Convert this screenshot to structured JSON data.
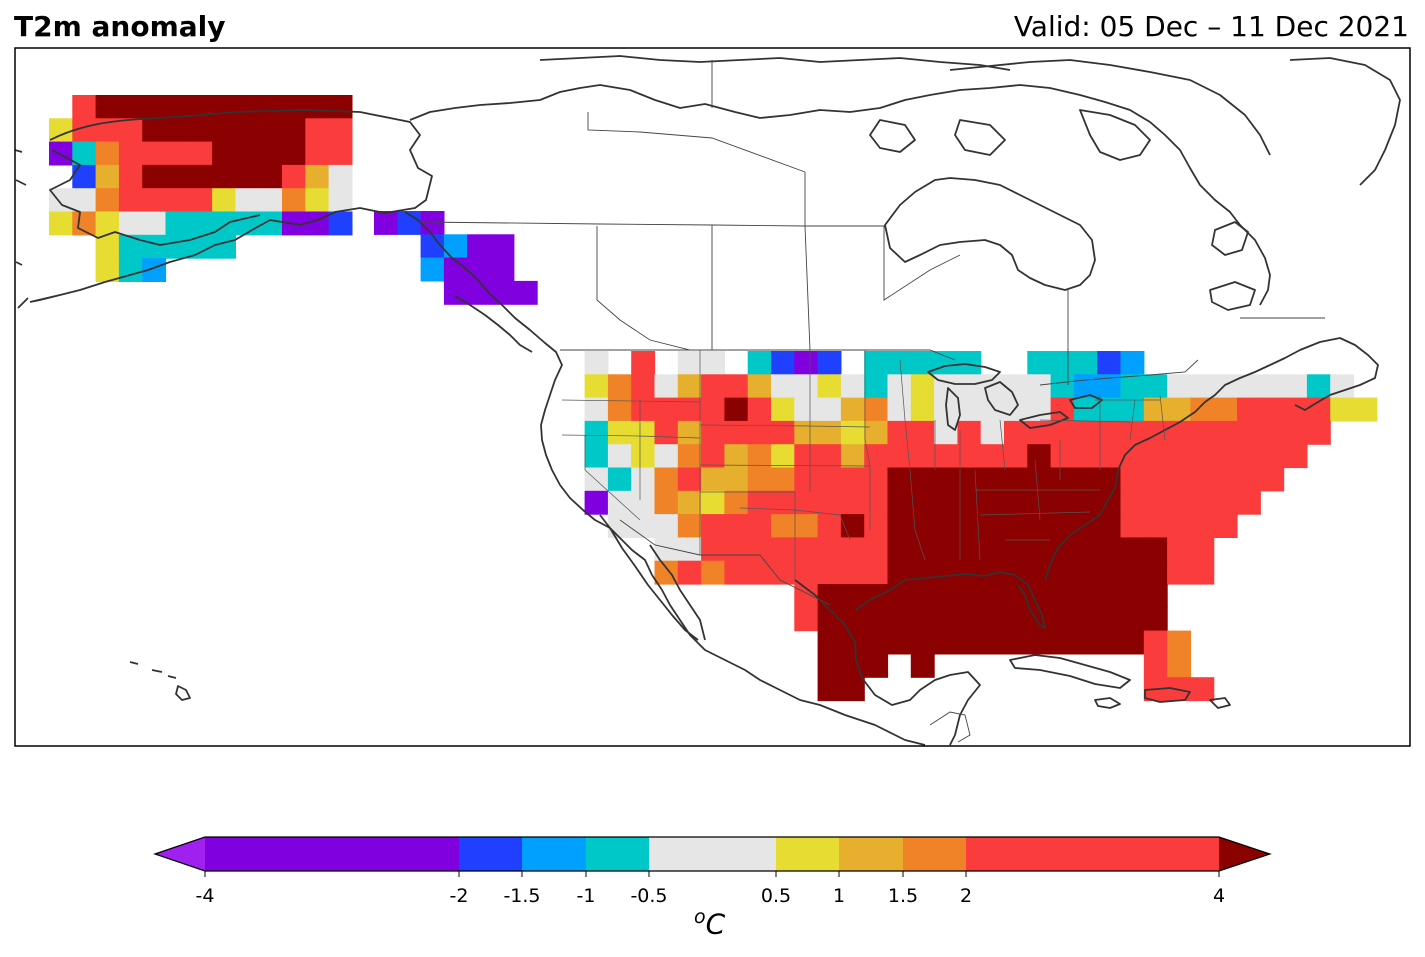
{
  "header": {
    "title": "T2m anomaly",
    "valid": "Valid: 05 Dec – 11 Dec 2021"
  },
  "colorbar": {
    "units_base": "C",
    "units_sup": "o",
    "ticks": [
      "-4",
      "-2",
      "-1.5",
      "-1",
      "-0.5",
      "0.5",
      "1",
      "1.5",
      "2",
      "4"
    ],
    "tick_values": [
      -4,
      -2,
      -1.5,
      -1,
      -0.5,
      0.5,
      1,
      1.5,
      2,
      4
    ],
    "bins": [
      {
        "from": -4,
        "to": -2,
        "color": "#8000e0"
      },
      {
        "from": -2,
        "to": -1.5,
        "color": "#2040ff"
      },
      {
        "from": -1.5,
        "to": -1,
        "color": "#00a0ff"
      },
      {
        "from": -1,
        "to": -0.5,
        "color": "#00c8c8"
      },
      {
        "from": -0.5,
        "to": 0.5,
        "color": "#e6e6e6"
      },
      {
        "from": 0.5,
        "to": 1,
        "color": "#e6dc32"
      },
      {
        "from": 1,
        "to": 1.5,
        "color": "#e6af2d"
      },
      {
        "from": 1.5,
        "to": 2,
        "color": "#f08228"
      },
      {
        "from": 2,
        "to": 4,
        "color": "#fa3c3c"
      }
    ],
    "under_color": "#a020f0",
    "over_color": "#8b0000"
  },
  "map_data": {
    "categories": {
      "V": "#8000e0",
      "B": "#2040ff",
      "L": "#00a0ff",
      "C": "#00c8c8",
      "W": "#e6e6e6",
      "Y": "#e6dc32",
      "G": "#e6af2d",
      "O": "#f08228",
      "R": "#fa3c3c",
      "D": "#8b0000"
    },
    "alaska_rows": [
      ".RDDDDDDDDDDD",
      "YRRRDDDDDDDRR",
      "VCORRRRDDDDRR",
      ".BGRDDDDDDRGW",
      "WWORRRRYWWOYW",
      "YOYWWCCCCCVVB",
      "..YCCCCC.....",
      "..YCL........"
    ],
    "panhandle_rows": [
      "VBV....",
      "..BLVV.",
      "..LVVV.",
      "...VVVV"
    ],
    "conus_rows": [
      "..W.R.WW.CBVB.CCCCC..CCCBL.........",
      "..YORWGRRGWWYWCWYWWWWWCLLCCWWWWWWCW.",
      "..WORRRRDRYWWGOWYWWWWWRCCCGGOORRRRYY",
      "..CYYRGRRRRGGYGRRWRWRRRRRRRRRRRRRR..",
      "..CWYWORGOYRRGRRRRRRRDRRRRRRRRRRR...",
      "..WCWORGGOORRRRDDDDDDDDDDRRRRRRR....",
      "..VWWOGYORRRRRRDDDDDDDDDDRRRRRR.....",
      "...WWWORRROORDRDDDDDDDDDDRRRRR......",
      ".....WWRRRRRRRRDDDDDDDDDDDDRR.......",
      ".....ORORRRRRRRDDDDDDDDDDDDRR.......",
      "...........RDDDDDDDDDDDDDDD........",
      "...........RDDDDDDDDDDDDDDD........",
      "............DDDDDDDDDDDDDDRO.......",
      "............DDD.D.........RO.......",
      "............DD............RRR......"
    ]
  }
}
